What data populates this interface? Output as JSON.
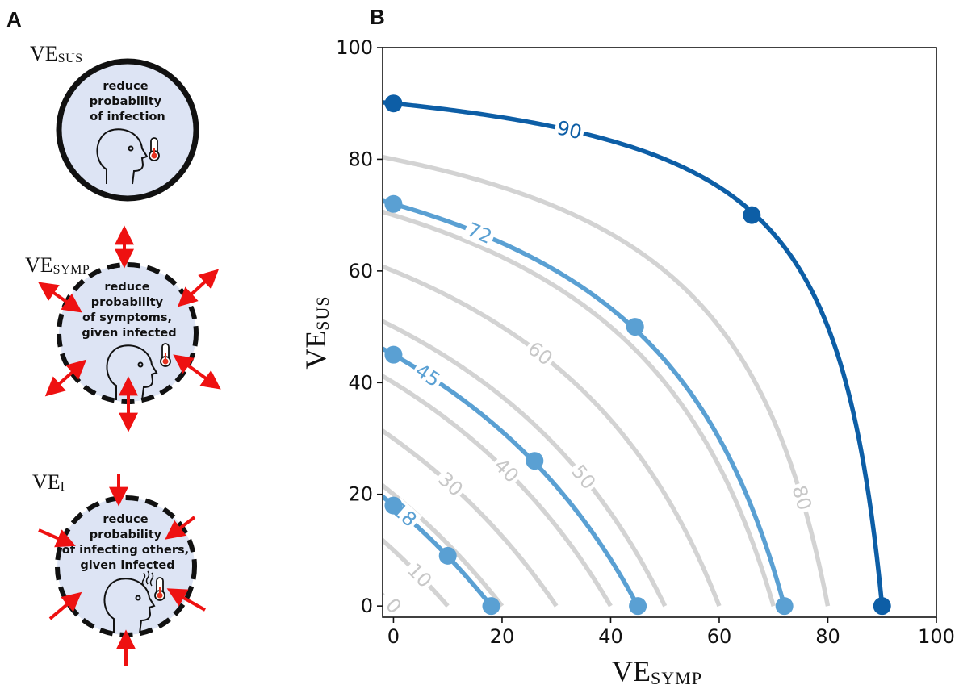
{
  "panels": {
    "a_letter": "A",
    "b_letter": "B"
  },
  "mechanisms": [
    {
      "name_base": "VE",
      "name_sub": "SUS",
      "lines": [
        "reduce",
        "probability",
        "of infection"
      ],
      "border": "solid",
      "arrows": "none"
    },
    {
      "name_base": "VE",
      "name_sub": "SYMP",
      "lines": [
        "reduce",
        "probability",
        "of symptoms,",
        "given infected"
      ],
      "border": "dashed",
      "arrows": "outward"
    },
    {
      "name_base": "VE",
      "name_sub": "I",
      "lines": [
        "reduce",
        "probability",
        "of infecting others,",
        "given infected"
      ],
      "border": "dashed",
      "arrows": "inward"
    }
  ],
  "icons": [
    "head-profile-icon",
    "thermometer-icon",
    "red-arrow-icon",
    "breath-lines-icon"
  ],
  "colors": {
    "circle_fill": "#dde4f4",
    "arrow": "#ee1111",
    "grey_contour": "#d3d3d3",
    "grey_label": "#c8c8c8",
    "dark_blue": "#0d5ea6",
    "light_blue": "#5aa0d3"
  },
  "chart_data": {
    "type": "line",
    "description_free": true,
    "xlabel_base": "VE",
    "xlabel_sub": "SYMP",
    "ylabel_base": "VE",
    "ylabel_sub": "SUS",
    "xlim": [
      -2,
      100
    ],
    "ylim": [
      -2,
      100
    ],
    "xticks": [
      0,
      20,
      40,
      60,
      80,
      100
    ],
    "yticks": [
      0,
      20,
      40,
      60,
      80,
      100
    ],
    "grid": false,
    "grey_contours": {
      "levels": [
        0,
        10,
        20,
        30,
        40,
        50,
        60,
        70,
        80
      ],
      "labels": [
        {
          "text": "0",
          "level": 0
        },
        {
          "text": "10",
          "level": 10
        },
        {
          "text": "30",
          "level": 30
        },
        {
          "text": "40",
          "level": 40
        },
        {
          "text": "50",
          "level": 50
        },
        {
          "text": "60",
          "level": 60
        },
        {
          "text": "80",
          "level": 80
        }
      ]
    },
    "series": [
      {
        "level": 90,
        "label": "90",
        "color": "dark",
        "points": [
          [
            0,
            90
          ],
          [
            66,
            70
          ],
          [
            90,
            0
          ]
        ]
      },
      {
        "level": 72,
        "label": "72",
        "color": "light",
        "points": [
          [
            0,
            72
          ],
          [
            44.5,
            50
          ],
          [
            72,
            0
          ]
        ]
      },
      {
        "level": 45,
        "label": "45",
        "color": "light",
        "points": [
          [
            0,
            45
          ],
          [
            26,
            26
          ],
          [
            45,
            0
          ]
        ]
      },
      {
        "level": 18,
        "label": "18",
        "color": "light",
        "points": [
          [
            0,
            18
          ],
          [
            10,
            9
          ],
          [
            18,
            0
          ]
        ]
      }
    ]
  }
}
